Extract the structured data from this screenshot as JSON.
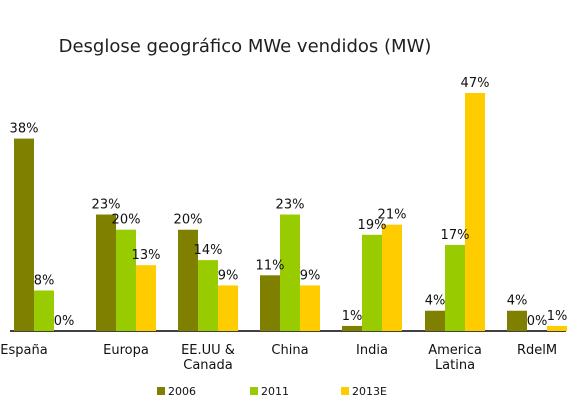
{
  "chart_data": {
    "type": "bar",
    "title": "Desglose geográfico MWe vendidos (MW)",
    "xlabel": "",
    "ylabel": "",
    "ylim": [
      0,
      50
    ],
    "grid": false,
    "legend_position": "bottom",
    "categories": [
      [
        "España"
      ],
      [
        "Europa"
      ],
      [
        "EE.UU &",
        "Canada"
      ],
      [
        "China"
      ],
      [
        "India"
      ],
      [
        "America",
        "Latina"
      ],
      [
        "RdelM"
      ]
    ],
    "series": [
      {
        "name": "2006",
        "color": "#7f7f00",
        "values": [
          38,
          23,
          20,
          11,
          1,
          4,
          4
        ],
        "labels": [
          "38%",
          "23%",
          "20%",
          "11%",
          "1%",
          "4%",
          "4%"
        ]
      },
      {
        "name": "2011",
        "color": "#99cc00",
        "values": [
          8,
          20,
          14,
          23,
          19,
          17,
          0
        ],
        "labels": [
          "8%",
          "20%",
          "14%",
          "23%",
          "19%",
          "17%",
          "0%"
        ]
      },
      {
        "name": "2013E",
        "color": "#ffcc00",
        "values": [
          0,
          13,
          9,
          9,
          21,
          47,
          1
        ],
        "labels": [
          "0%",
          "13%",
          "9%",
          "9%",
          "21%",
          "47%",
          "1%"
        ]
      }
    ]
  }
}
